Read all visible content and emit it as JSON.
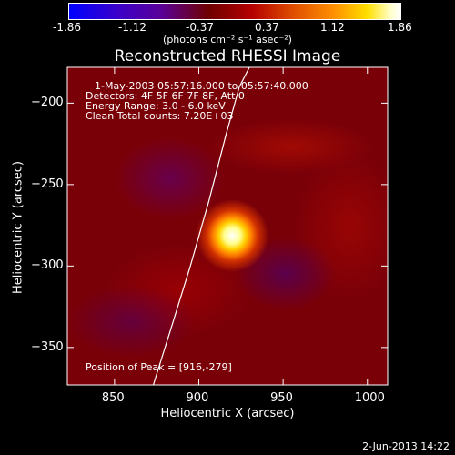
{
  "colorbar": {
    "ticks": [
      "-1.86",
      "-1.12",
      "-0.37",
      "0.37",
      "1.12",
      "1.86"
    ],
    "unit_label": "(photons cm⁻² s⁻¹ asec⁻²)",
    "range": [
      -1.86,
      1.86
    ]
  },
  "plot": {
    "title": "Reconstructed RHESSI Image",
    "info": {
      "time": "1-May-2003 05:57:16.000 to 05:57:40.000",
      "detectors": "Detectors: 4F 5F 6F 7F 8F, Att 0",
      "energy": "Energy Range: 3.0 - 6.0 keV",
      "clean": "Clean    Total counts: 7.20E+03"
    },
    "peak": "Position of Peak = [916,-279]"
  },
  "footer": {
    "timestamp": "2-Jun-2013 14:22"
  },
  "chart_data": {
    "type": "heatmap",
    "title": "Reconstructed RHESSI Image",
    "xlabel": "Heliocentric X (arcsec)",
    "ylabel": "Heliocentric Y (arcsec)",
    "xlim": [
      822,
      1012
    ],
    "ylim": [
      -373,
      -178
    ],
    "x_ticks": [
      850,
      900,
      950,
      1000
    ],
    "y_ticks": [
      -200,
      -250,
      -300,
      -350
    ],
    "colorbar_range": [
      -1.86,
      1.86
    ],
    "peak_position": [
      916,
      -279
    ],
    "limb_curve": [
      [
        873,
        -373
      ],
      [
        883,
        -340
      ],
      [
        895,
        -300
      ],
      [
        906,
        -260
      ],
      [
        916,
        -220
      ],
      [
        924,
        -190
      ],
      [
        930,
        -178
      ]
    ],
    "colors": {
      "low": "#0000ff",
      "mid": "#b40000",
      "high": "#ffffff"
    }
  }
}
